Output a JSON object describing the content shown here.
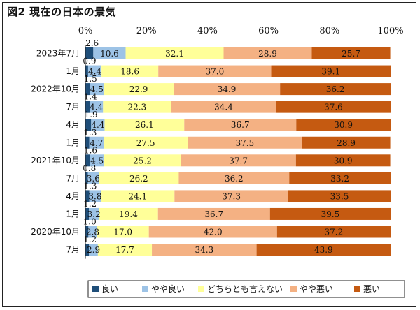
{
  "chart_data": {
    "type": "bar",
    "orientation": "horizontal",
    "stacked": true,
    "title": "図2 現在の日本の景気",
    "xlim": [
      0,
      100
    ],
    "x_ticks": [
      "0%",
      "20%",
      "40%",
      "60%",
      "80%",
      "100%"
    ],
    "categories": [
      "2023年7月",
      "1月",
      "2022年10月",
      "7月",
      "4月",
      "1月",
      "2021年10月",
      "7月",
      "4月",
      "1月",
      "2020年10月",
      "7月"
    ],
    "series": [
      {
        "name": "良い",
        "color": "#1f4e79",
        "values": [
          2.6,
          0.9,
          1.5,
          1.4,
          1.9,
          1.3,
          1.6,
          0.8,
          1.3,
          1.2,
          1.0,
          1.2
        ]
      },
      {
        "name": "やや良い",
        "color": "#9dc3e6",
        "values": [
          10.6,
          4.4,
          4.5,
          4.4,
          4.4,
          4.7,
          4.5,
          3.6,
          3.8,
          3.2,
          2.8,
          2.9
        ]
      },
      {
        "name": "どちらとも言えない",
        "color": "#ffff99",
        "values": [
          32.1,
          18.6,
          22.9,
          22.3,
          26.1,
          27.5,
          25.2,
          26.2,
          24.1,
          19.4,
          17.0,
          17.7
        ]
      },
      {
        "name": "やや悪い",
        "color": "#f4b183",
        "values": [
          28.9,
          37.0,
          34.9,
          34.4,
          36.7,
          37.5,
          37.7,
          36.2,
          37.3,
          36.7,
          42.0,
          34.3
        ]
      },
      {
        "name": "悪い",
        "color": "#c55a11",
        "values": [
          25.7,
          39.1,
          36.2,
          37.6,
          30.9,
          28.9,
          30.9,
          33.2,
          33.5,
          39.5,
          37.2,
          43.9
        ]
      }
    ],
    "legend_position": "bottom",
    "grid": false
  }
}
